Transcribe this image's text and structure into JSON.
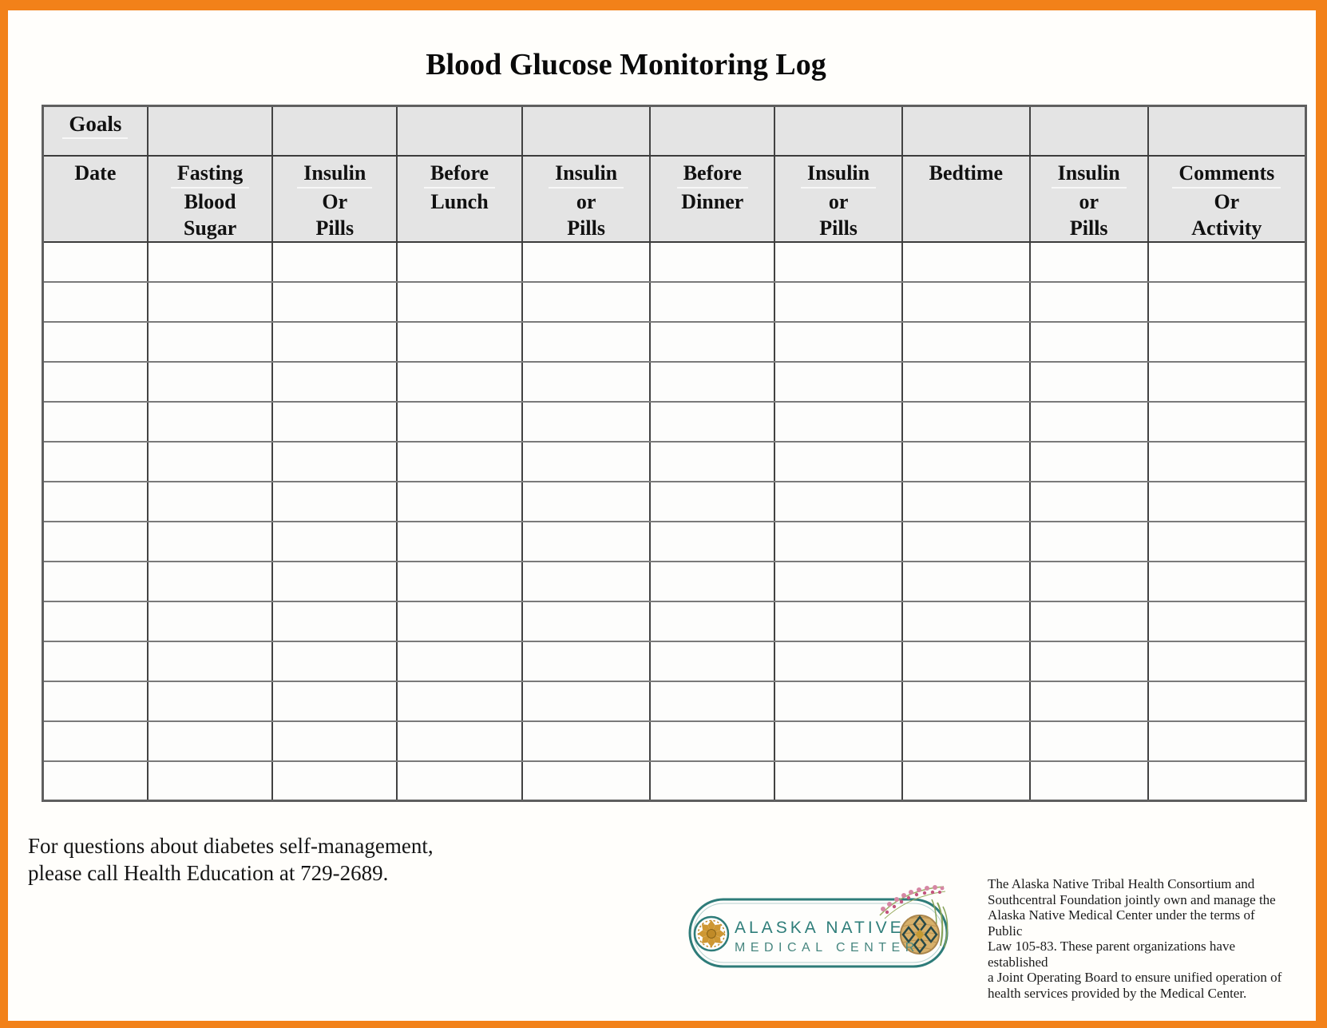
{
  "page": {
    "title": "Blood Glucose Monitoring Log"
  },
  "table": {
    "goals_label": "Goals",
    "goals_underlined": true,
    "body_rows": 14,
    "columns": [
      {
        "id": "date",
        "label_lines": [
          "Date"
        ],
        "underline_first": false
      },
      {
        "id": "fasting-blood-sugar",
        "label_lines": [
          "Fasting",
          "Blood",
          "Sugar"
        ],
        "underline_first": true
      },
      {
        "id": "insulin-pills-morning",
        "label_lines": [
          "Insulin",
          "Or",
          "Pills"
        ],
        "underline_first": true
      },
      {
        "id": "before-lunch",
        "label_lines": [
          "Before",
          "Lunch"
        ],
        "underline_first": true
      },
      {
        "id": "insulin-pills-lunch",
        "label_lines": [
          "Insulin",
          "or",
          "Pills"
        ],
        "underline_first": true
      },
      {
        "id": "before-dinner",
        "label_lines": [
          "Before",
          "Dinner"
        ],
        "underline_first": true
      },
      {
        "id": "insulin-pills-dinner",
        "label_lines": [
          "Insulin",
          "or",
          "Pills"
        ],
        "underline_first": true
      },
      {
        "id": "bedtime",
        "label_lines": [
          "Bedtime"
        ],
        "underline_first": false
      },
      {
        "id": "insulin-pills-bedtime",
        "label_lines": [
          "Insulin",
          "or",
          "Pills"
        ],
        "underline_first": true
      },
      {
        "id": "comments-activity",
        "label_lines": [
          "Comments",
          "Or",
          "Activity"
        ],
        "underline_first": true
      }
    ]
  },
  "footer": {
    "questions_line1": "For questions about diabetes self-management,",
    "questions_line2": "please call Health Education at 729-2689.",
    "logo": {
      "line1": "ALASKA NATIVE",
      "line2": "MEDICAL CENTER"
    },
    "disclaimer_lines": [
      "The Alaska Native Tribal Health Consortium and",
      "Southcentral Foundation jointly own and manage the",
      "Alaska Native Medical Center under the terms of Public",
      "Law 105-83.  These parent organizations have established",
      "a Joint Operating Board to ensure unified operation of",
      "health services provided by the Medical Center."
    ]
  },
  "colors": {
    "border_orange": "#F28119",
    "logo_teal": "#2E7C79",
    "header_gray": "#E4E4E4"
  }
}
